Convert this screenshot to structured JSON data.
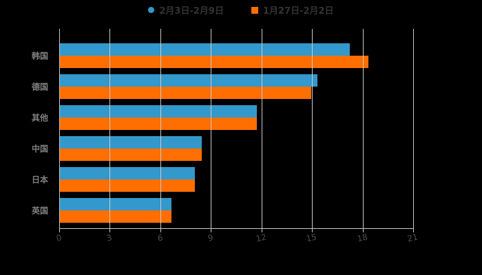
{
  "colors": {
    "background": "#000000",
    "series1": "#3398cb",
    "series2": "#ff6e00",
    "gridline": "#cccccc",
    "axis_line": "#c9c9c9",
    "xtick_label": "#4d4d4d",
    "category_label": "#7f7f7f",
    "legend_text": "#333333"
  },
  "legend": {
    "item1_marker": "circle-icon",
    "item2_marker": "square-icon"
  },
  "chart_data": {
    "type": "bar",
    "orientation": "horizontal",
    "title": "",
    "xlabel": "",
    "ylabel": "",
    "categories": [
      "韩国",
      "德国",
      "其他",
      "中国",
      "日本",
      "英国"
    ],
    "series": [
      {
        "name": "2月3日-2月9日",
        "color": "#3398cb",
        "marker": "circle",
        "values": [
          17.2,
          15.3,
          11.7,
          8.4,
          8.0,
          6.6
        ]
      },
      {
        "name": "1月27日-2月2日",
        "color": "#ff6e00",
        "marker": "square",
        "values": [
          18.3,
          14.9,
          11.7,
          8.4,
          8.0,
          6.6
        ]
      }
    ],
    "xlim": [
      0,
      21
    ],
    "xticks": [
      0,
      3,
      6,
      9,
      12,
      15,
      18,
      21
    ],
    "grid": true,
    "legend_position": "top"
  }
}
